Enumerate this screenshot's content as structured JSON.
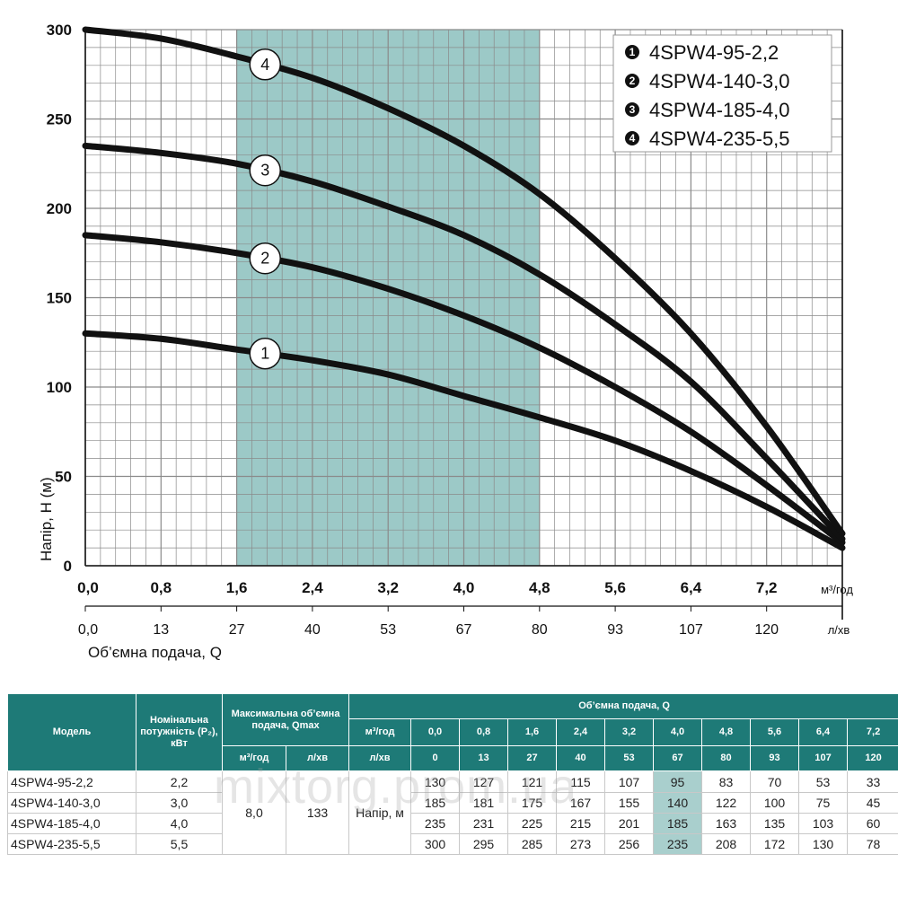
{
  "chart_data": {
    "type": "line",
    "title": "",
    "xlabel": "Об’ємна подача, Q",
    "ylabel": "Напір, H (м)",
    "x_unit": "м³/год",
    "x2_unit": "л/хв",
    "xlim": [
      0,
      8.0
    ],
    "ylim": [
      0,
      300
    ],
    "x_ticks": [
      "0,0",
      "0,8",
      "1,6",
      "2,4",
      "3,2",
      "4,0",
      "4,8",
      "5,6",
      "6,4",
      "7,2"
    ],
    "x2_ticks": [
      "0,0",
      "13",
      "27",
      "40",
      "53",
      "67",
      "80",
      "93",
      "107",
      "120"
    ],
    "y_ticks": [
      "0",
      "50",
      "100",
      "150",
      "200",
      "250",
      "300"
    ],
    "recommended_range": [
      1.6,
      4.8
    ],
    "x": [
      0.0,
      0.8,
      1.6,
      2.4,
      3.2,
      4.0,
      4.8,
      5.6,
      6.4,
      7.2,
      8.0
    ],
    "series": [
      {
        "name": "4SPW4-95-2,2",
        "marker": "1",
        "legend_num": "1",
        "values": [
          130,
          127,
          121,
          115,
          107,
          95,
          83,
          70,
          53,
          33,
          10
        ]
      },
      {
        "name": "4SPW4-140-3,0",
        "marker": "2",
        "legend_num": "2",
        "values": [
          185,
          181,
          175,
          167,
          155,
          140,
          122,
          100,
          75,
          45,
          13
        ]
      },
      {
        "name": "4SPW4-185-4,0",
        "marker": "3",
        "legend_num": "3",
        "values": [
          235,
          231,
          225,
          215,
          201,
          185,
          163,
          135,
          103,
          60,
          15
        ]
      },
      {
        "name": "4SPW4-235-5,5",
        "marker": "4",
        "legend_num": "4",
        "values": [
          300,
          295,
          285,
          273,
          256,
          235,
          208,
          172,
          130,
          78,
          18
        ]
      }
    ]
  },
  "watermark": "mixtorg.prom.ua",
  "table": {
    "headers": {
      "model": "Модель",
      "power": "Номінальна потужність (P₂), кВт",
      "qmax": "Максимальна об’ємна подача, Qmax",
      "qmax_m3": "м³/год",
      "qmax_lmin": "л/хв",
      "flow": "Об’ємна подача, Q",
      "unit_m3": "м³/год",
      "unit_lmin": "л/хв"
    },
    "flow_m3": [
      "0,0",
      "0,8",
      "1,6",
      "2,4",
      "3,2",
      "4,0",
      "4,8",
      "5,6",
      "6,4",
      "7,2"
    ],
    "flow_lmin": [
      "0",
      "13",
      "27",
      "40",
      "53",
      "67",
      "80",
      "93",
      "107",
      "120"
    ],
    "qmax_m3_value": "8,0",
    "qmax_lmin_value": "133",
    "head_label": "Напір, м",
    "rows": [
      {
        "model": "4SPW4-95-2,2",
        "power": "2,2",
        "values": [
          "130",
          "127",
          "121",
          "115",
          "107",
          "95",
          "83",
          "70",
          "53",
          "33"
        ]
      },
      {
        "model": "4SPW4-140-3,0",
        "power": "3,0",
        "values": [
          "185",
          "181",
          "175",
          "167",
          "155",
          "140",
          "122",
          "100",
          "75",
          "45"
        ]
      },
      {
        "model": "4SPW4-185-4,0",
        "power": "4,0",
        "values": [
          "235",
          "231",
          "225",
          "215",
          "201",
          "185",
          "163",
          "135",
          "103",
          "60"
        ]
      },
      {
        "model": "4SPW4-235-5,5",
        "power": "5,5",
        "values": [
          "300",
          "295",
          "285",
          "273",
          "256",
          "235",
          "208",
          "172",
          "130",
          "78"
        ]
      }
    ]
  },
  "colors": {
    "teal": "#1e7a77",
    "highlight": "#9cc9c7",
    "grid": "#8a8a8a",
    "curve": "#111111"
  }
}
